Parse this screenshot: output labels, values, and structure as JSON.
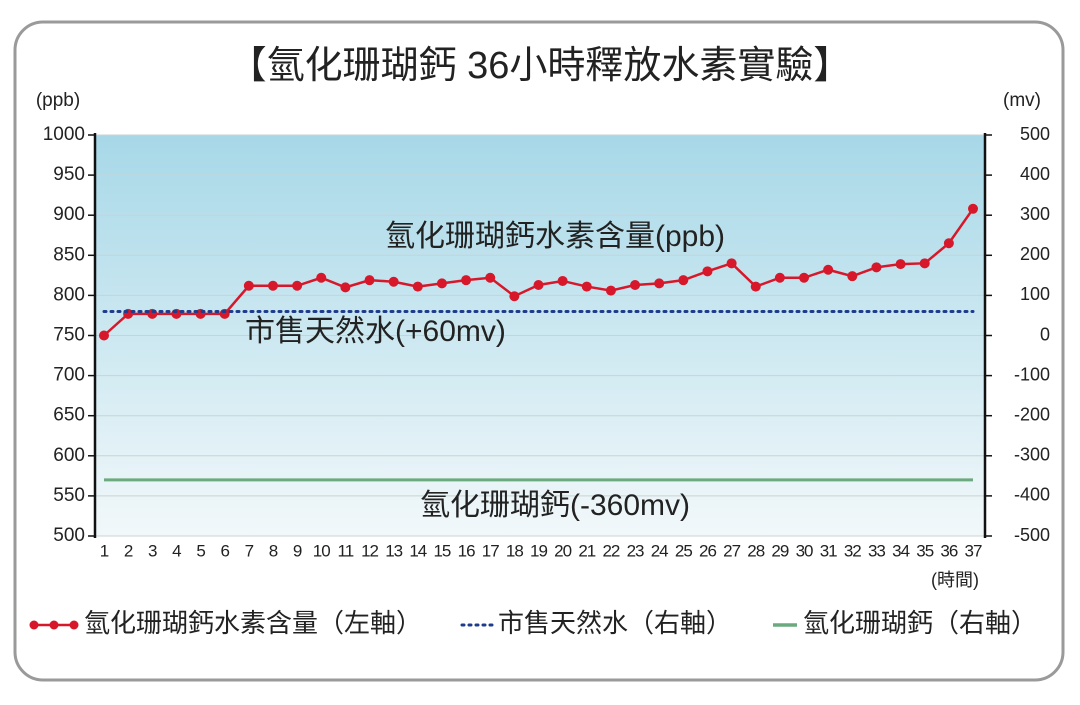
{
  "chart_data": {
    "type": "line",
    "title": "【氫化珊瑚鈣 36小時釋放水素實驗】",
    "y_label": "(ppb)",
    "y2_label": "(mv)",
    "x_label": "(時間)",
    "categories": [
      1,
      2,
      3,
      4,
      5,
      6,
      7,
      8,
      9,
      10,
      11,
      12,
      13,
      14,
      15,
      16,
      17,
      18,
      19,
      20,
      21,
      22,
      23,
      24,
      25,
      26,
      27,
      28,
      29,
      30,
      31,
      32,
      33,
      34,
      35,
      36,
      37
    ],
    "ylim": [
      500,
      1000
    ],
    "yticks": [
      500,
      550,
      600,
      650,
      700,
      750,
      800,
      850,
      900,
      950,
      1000
    ],
    "y2lim": [
      -500,
      500
    ],
    "y2ticks": [
      -500,
      -400,
      -300,
      -200,
      -100,
      0,
      100,
      200,
      300,
      400,
      500
    ],
    "grid": true,
    "series": [
      {
        "name": "氫化珊瑚鈣水素含量（左軸）",
        "color": "#d7182a",
        "style": "line-dots",
        "values": [
          750,
          777,
          777,
          777,
          777,
          777,
          812,
          812,
          812,
          822,
          810,
          819,
          817,
          811,
          815,
          819,
          822,
          799,
          813,
          818,
          811,
          806,
          813,
          815,
          819,
          830,
          840,
          811,
          822,
          822,
          832,
          824,
          835,
          839,
          840,
          865,
          908
        ]
      },
      {
        "name": "市售天然水（右軸）",
        "color": "#1f3c8c",
        "style": "dotted",
        "axis": "y2",
        "values": [
          60,
          60,
          60,
          60,
          60,
          60,
          60,
          60,
          60,
          60,
          60,
          60,
          60,
          60,
          60,
          60,
          60,
          60,
          60,
          60,
          60,
          60,
          60,
          60,
          60,
          60,
          60,
          60,
          60,
          60,
          60,
          60,
          60,
          60,
          60,
          60,
          60
        ]
      },
      {
        "name": "氫化珊瑚鈣（右軸）",
        "color": "#6aaa7e",
        "style": "solid",
        "axis": "y2",
        "values": [
          -360,
          -360,
          -360,
          -360,
          -360,
          -360,
          -360,
          -360,
          -360,
          -360,
          -360,
          -360,
          -360,
          -360,
          -360,
          -360,
          -360,
          -360,
          -360,
          -360,
          -360,
          -360,
          -360,
          -360,
          -360,
          -360,
          -360,
          -360,
          -360,
          -360,
          -360,
          -360,
          -360,
          -360,
          -360,
          -360,
          -360
        ]
      }
    ],
    "annotations": [
      "氫化珊瑚鈣水素含量(ppb)",
      "市售天然水(+60mv)",
      "氫化珊瑚鈣(-360mv)"
    ]
  }
}
